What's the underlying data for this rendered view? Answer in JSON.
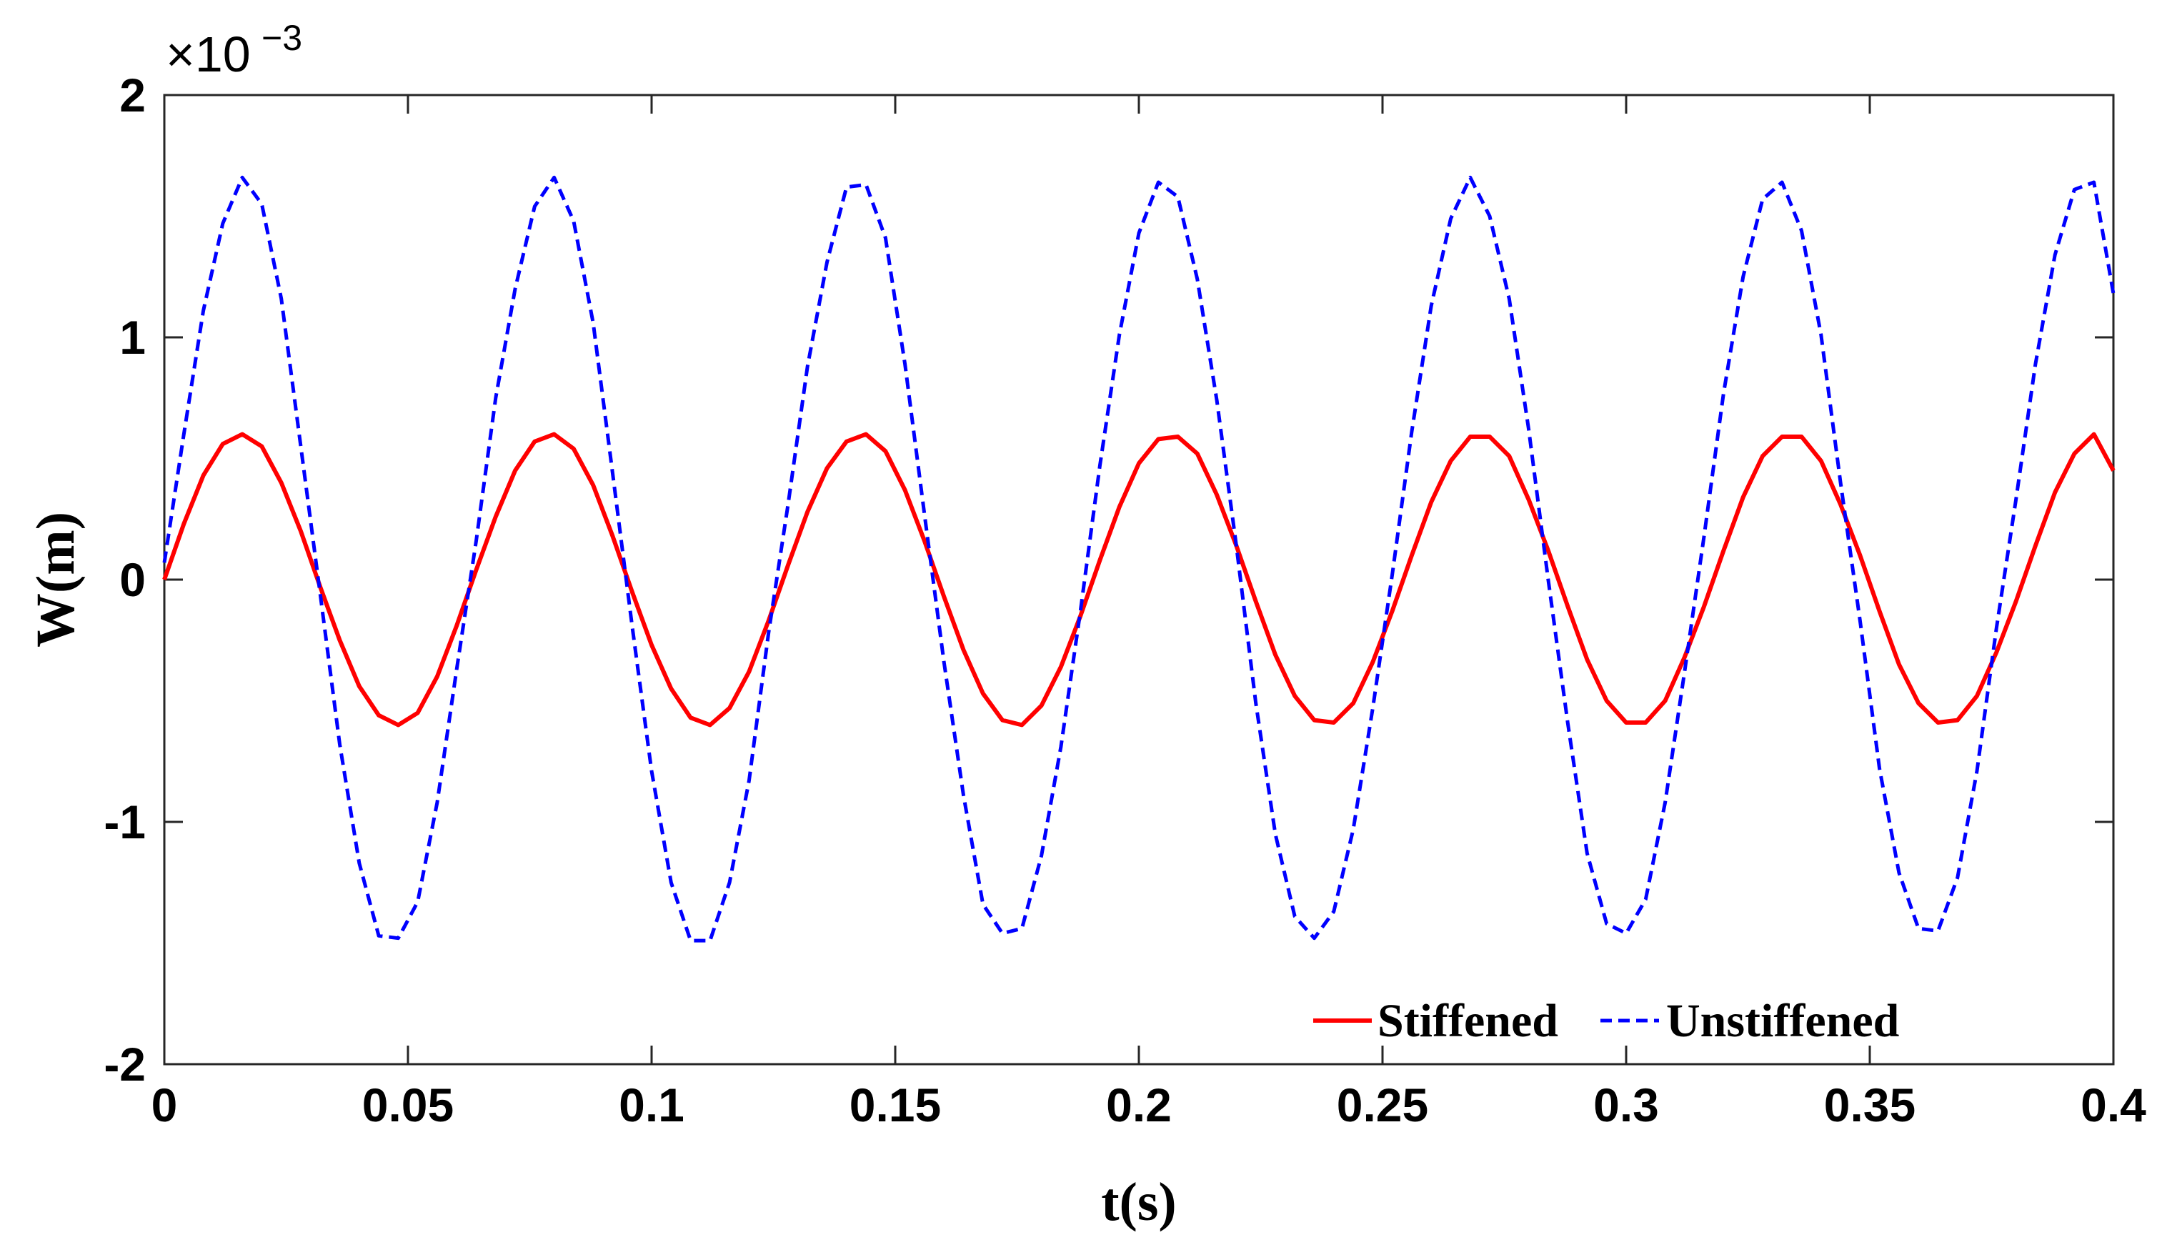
{
  "chart_data": {
    "type": "line",
    "title": "",
    "xlabel": "t(s)",
    "ylabel": "W(m)",
    "xlim": [
      0,
      0.4
    ],
    "ylim": [
      -2,
      2
    ],
    "y_scale_label": "×10",
    "y_scale_exponent": "−3",
    "grid": false,
    "legend_position": "bottom-right",
    "xticks": [
      0,
      0.05,
      0.1,
      0.15,
      0.2,
      0.25,
      0.3,
      0.35,
      0.4
    ],
    "xtick_labels": [
      "0",
      "0.05",
      "0.1",
      "0.15",
      "0.2",
      "0.25",
      "0.3",
      "0.35",
      "0.4"
    ],
    "yticks": [
      -2,
      -1,
      0,
      1,
      2
    ],
    "ytick_labels": [
      "-2",
      "-1",
      "0",
      "1",
      "2"
    ],
    "series": [
      {
        "name": "Stiffened",
        "color": "#ff0000",
        "style": "solid",
        "units": "×10^-3 m",
        "x": [
          0,
          0.004,
          0.008,
          0.012,
          0.016,
          0.02,
          0.024,
          0.028,
          0.032,
          0.036,
          0.04,
          0.044,
          0.048,
          0.052,
          0.056,
          0.06,
          0.064,
          0.068,
          0.072,
          0.076,
          0.08,
          0.084,
          0.088,
          0.092,
          0.096,
          0.1,
          0.104,
          0.108,
          0.112,
          0.116,
          0.12,
          0.124,
          0.128,
          0.132,
          0.136,
          0.14,
          0.144,
          0.148,
          0.152,
          0.156,
          0.16,
          0.164,
          0.168,
          0.172,
          0.176,
          0.18,
          0.184,
          0.188,
          0.192,
          0.196,
          0.2,
          0.204,
          0.208,
          0.212,
          0.216,
          0.22,
          0.224,
          0.228,
          0.232,
          0.236,
          0.24,
          0.244,
          0.248,
          0.252,
          0.256,
          0.26,
          0.264,
          0.268,
          0.272,
          0.276,
          0.28,
          0.284,
          0.288,
          0.292,
          0.296,
          0.3,
          0.304,
          0.308,
          0.312,
          0.316,
          0.32,
          0.324,
          0.328,
          0.332,
          0.336,
          0.34,
          0.344,
          0.348,
          0.352,
          0.356,
          0.36,
          0.364,
          0.368,
          0.372,
          0.376,
          0.38,
          0.384,
          0.388,
          0.392,
          0.396,
          0.4
        ],
        "values": [
          0.0,
          0.23,
          0.43,
          0.56,
          0.6,
          0.55,
          0.4,
          0.2,
          -0.03,
          -0.25,
          -0.44,
          -0.56,
          -0.6,
          -0.55,
          -0.4,
          -0.19,
          0.04,
          0.26,
          0.45,
          0.57,
          0.6,
          0.54,
          0.39,
          0.18,
          -0.05,
          -0.27,
          -0.45,
          -0.57,
          -0.6,
          -0.53,
          -0.38,
          -0.17,
          0.06,
          0.28,
          0.46,
          0.57,
          0.6,
          0.53,
          0.37,
          0.16,
          -0.07,
          -0.29,
          -0.47,
          -0.58,
          -0.6,
          -0.52,
          -0.36,
          -0.15,
          0.08,
          0.3,
          0.48,
          0.58,
          0.59,
          0.52,
          0.35,
          0.14,
          -0.09,
          -0.31,
          -0.48,
          -0.58,
          -0.59,
          -0.51,
          -0.34,
          -0.13,
          0.1,
          0.32,
          0.49,
          0.59,
          0.59,
          0.51,
          0.33,
          0.12,
          -0.11,
          -0.33,
          -0.5,
          -0.59,
          -0.59,
          -0.5,
          -0.32,
          -0.11,
          0.12,
          0.34,
          0.51,
          0.59,
          0.59,
          0.49,
          0.31,
          0.1,
          -0.13,
          -0.35,
          -0.51,
          -0.59,
          -0.58,
          -0.48,
          -0.3,
          -0.09,
          0.14,
          0.36,
          0.52,
          0.6,
          0.45
        ]
      },
      {
        "name": "Unstiffened",
        "color": "#0000ff",
        "style": "dashed",
        "units": "×10^-3 m",
        "x": [
          0,
          0.004,
          0.008,
          0.012,
          0.016,
          0.02,
          0.024,
          0.028,
          0.032,
          0.036,
          0.04,
          0.044,
          0.048,
          0.052,
          0.056,
          0.06,
          0.064,
          0.068,
          0.072,
          0.076,
          0.08,
          0.084,
          0.088,
          0.092,
          0.096,
          0.1,
          0.104,
          0.108,
          0.112,
          0.116,
          0.12,
          0.124,
          0.128,
          0.132,
          0.136,
          0.14,
          0.144,
          0.148,
          0.152,
          0.156,
          0.16,
          0.164,
          0.168,
          0.172,
          0.176,
          0.18,
          0.184,
          0.188,
          0.192,
          0.196,
          0.2,
          0.204,
          0.208,
          0.212,
          0.216,
          0.22,
          0.224,
          0.228,
          0.232,
          0.236,
          0.24,
          0.244,
          0.248,
          0.252,
          0.256,
          0.26,
          0.264,
          0.268,
          0.272,
          0.276,
          0.28,
          0.284,
          0.288,
          0.292,
          0.296,
          0.3,
          0.304,
          0.308,
          0.312,
          0.316,
          0.32,
          0.324,
          0.328,
          0.332,
          0.336,
          0.34,
          0.344,
          0.348,
          0.352,
          0.356,
          0.36,
          0.364,
          0.368,
          0.372,
          0.376,
          0.38,
          0.384,
          0.388,
          0.392,
          0.396,
          0.4
        ],
        "values": [
          0.07,
          0.6,
          1.11,
          1.47,
          1.66,
          1.55,
          1.16,
          0.55,
          -0.06,
          -0.68,
          -1.17,
          -1.47,
          -1.48,
          -1.33,
          -0.92,
          -0.37,
          0.16,
          0.75,
          1.2,
          1.54,
          1.66,
          1.48,
          1.06,
          0.44,
          -0.19,
          -0.79,
          -1.25,
          -1.49,
          -1.49,
          -1.25,
          -0.83,
          -0.22,
          0.31,
          0.88,
          1.31,
          1.62,
          1.63,
          1.41,
          0.89,
          0.27,
          -0.34,
          -0.89,
          -1.34,
          -1.46,
          -1.44,
          -1.14,
          -0.69,
          -0.13,
          0.47,
          1.01,
          1.43,
          1.64,
          1.58,
          1.24,
          0.74,
          0.14,
          -0.51,
          -1.05,
          -1.39,
          -1.48,
          -1.37,
          -1.03,
          -0.53,
          0.02,
          0.61,
          1.13,
          1.49,
          1.66,
          1.5,
          1.16,
          0.62,
          0.0,
          -0.59,
          -1.13,
          -1.42,
          -1.46,
          -1.32,
          -0.92,
          -0.38,
          0.18,
          0.77,
          1.25,
          1.57,
          1.64,
          1.44,
          1.01,
          0.4,
          -0.17,
          -0.78,
          -1.21,
          -1.44,
          -1.45,
          -1.23,
          -0.79,
          -0.2,
          0.33,
          0.89,
          1.34,
          1.61,
          1.64,
          1.18
        ]
      }
    ]
  }
}
